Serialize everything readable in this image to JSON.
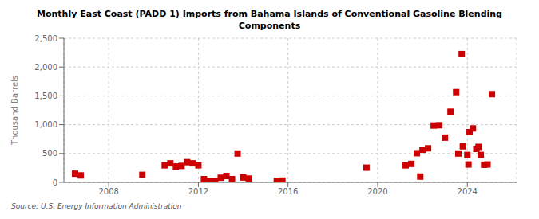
{
  "chart_data": {
    "type": "scatter",
    "title": "Monthly East Coast (PADD 1) Imports from Bahama Islands of Conventional Gasoline Blending\nComponents",
    "ylabel": "Thousand Barrels",
    "source": "Source: U.S. Energy Information Administration",
    "color": "#cc0000",
    "marker": "square",
    "xlim": [
      2006.0,
      2026.2
    ],
    "xticks": [
      2008,
      2012,
      2016,
      2020,
      2024
    ],
    "ylim": [
      0,
      2500
    ],
    "yticks": [
      0,
      500,
      {
        "value": 1000,
        "label": "1,000"
      },
      {
        "value": 1500,
        "label": "1,500"
      },
      {
        "value": 2000,
        "label": "2,000"
      },
      {
        "value": 2500,
        "label": "2,500"
      }
    ],
    "grid": true,
    "x": [
      2006.5,
      2006.75,
      2009.5,
      2010.5,
      2010.75,
      2011.0,
      2011.25,
      2011.5,
      2011.75,
      2012.0,
      2012.25,
      2012.5,
      2012.75,
      2013.0,
      2013.25,
      2013.5,
      2013.75,
      2014.0,
      2014.25,
      2015.5,
      2015.75,
      2019.5,
      2021.25,
      2021.5,
      2021.75,
      2022.0,
      2022.25,
      2022.5,
      2022.75,
      2023.0,
      2023.25,
      2023.5,
      2023.75,
      2024.0,
      2024.1,
      2024.25,
      2024.4,
      2024.5,
      2024.6,
      2024.75,
      2024.9,
      2025.1,
      2021.9,
      2023.6,
      2023.8,
      2024.05
    ],
    "values": [
      150,
      120,
      130,
      295,
      330,
      275,
      285,
      350,
      330,
      295,
      55,
      25,
      15,
      80,
      110,
      55,
      500,
      85,
      65,
      25,
      30,
      255,
      295,
      320,
      505,
      565,
      590,
      985,
      990,
      775,
      1225,
      1565,
      2225,
      475,
      870,
      935,
      580,
      615,
      475,
      305,
      310,
      1530,
      100,
      500,
      625,
      310
    ]
  }
}
